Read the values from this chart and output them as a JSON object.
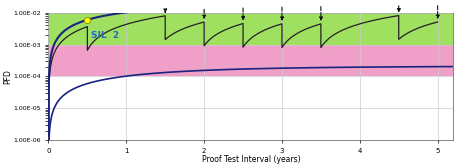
{
  "xlabel": "Proof Test Interval (years)",
  "ylabel": "PFD",
  "xlim": [
    0,
    5.2
  ],
  "ylim": [
    1e-06,
    0.01
  ],
  "green_band": [
    0.001,
    0.01
  ],
  "pink_band": [
    0.0001,
    0.001
  ],
  "white_band": [
    1e-06,
    0.0001
  ],
  "green_color": "#a0e060",
  "pink_color": "#f0a0c8",
  "sil2_label": "SIL  2",
  "sil2_color": "#2266cc",
  "curve_color": "#1a237e",
  "upper_lam": 0.014,
  "lower_lam": 0.00014,
  "pti_points": [
    0.5,
    1.5,
    2.0,
    2.5,
    3.0,
    3.5,
    4.5,
    5.0
  ],
  "dot_color": "#ffff00",
  "dot_edge": "#888800",
  "arrow_color": "#111111",
  "stair_color": "#222222",
  "bg_plot": "#e8e8e8",
  "yticks": [
    1e-06,
    1e-05,
    0.0001,
    0.001,
    0.01
  ],
  "ytick_labels": [
    "1.00E-06",
    "1.00E-05",
    "1.00E-04",
    "1.00E-03",
    "1.00E-02"
  ],
  "xticks": [
    0,
    1,
    2,
    3,
    4,
    5
  ],
  "figsize": [
    4.56,
    1.67
  ],
  "dpi": 100
}
